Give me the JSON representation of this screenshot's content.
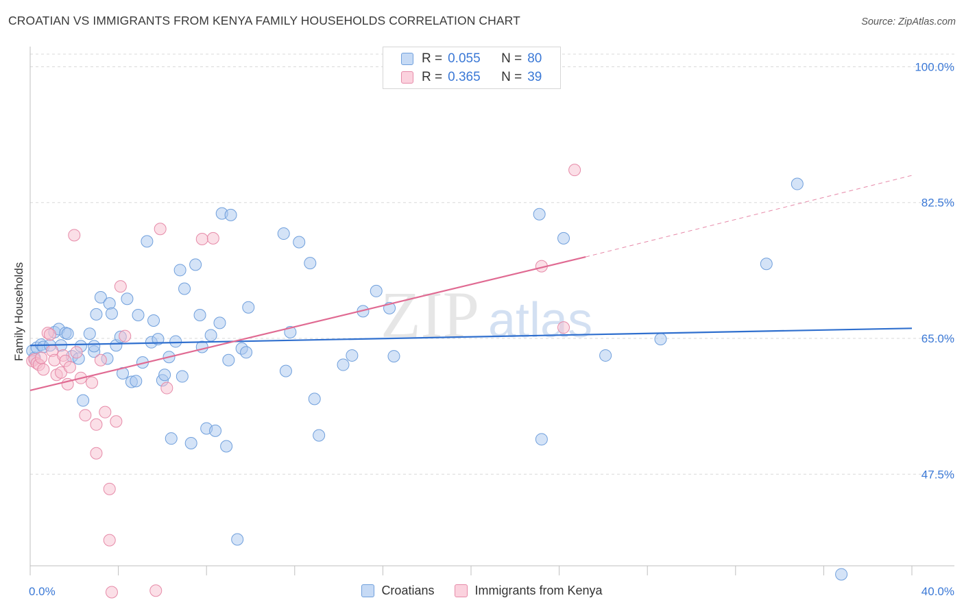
{
  "title": "CROATIAN VS IMMIGRANTS FROM KENYA FAMILY HOUSEHOLDS CORRELATION CHART",
  "source": "Source: ZipAtlas.com",
  "watermark": {
    "zip": "ZIP",
    "atlas": "atlas"
  },
  "colors": {
    "blue_fill": "#aac8f0",
    "blue_stroke": "#6f9fdc",
    "blue_line": "#2f6fce",
    "pink_fill": "#f8bfd0",
    "pink_stroke": "#e68aa8",
    "pink_line": "#e06a92",
    "axis_text": "#3a78d6",
    "grid": "#d9d9d9"
  },
  "legend_top": {
    "rows": [
      {
        "r_label": "R =",
        "r_value": "0.055",
        "n_label": "N =",
        "n_value": "80"
      },
      {
        "r_label": "R =",
        "r_value": "0.365",
        "n_label": "N =",
        "n_value": "39"
      }
    ]
  },
  "legend_bottom": {
    "series1": "Croatians",
    "series2": "Immigrants from Kenya"
  },
  "chart_data": {
    "type": "scatter",
    "title": "CROATIAN VS IMMIGRANTS FROM KENYA FAMILY HOUSEHOLDS CORRELATION CHART",
    "xlabel": "",
    "ylabel": "Family Households",
    "xlim": [
      0,
      40
    ],
    "ylim": [
      35.7,
      102.6
    ],
    "x_tick_labels": [
      "0.0%",
      "40.0%"
    ],
    "y_ticks": [
      47.5,
      65.0,
      82.5,
      100.0
    ],
    "y_tick_labels": [
      "47.5%",
      "65.0%",
      "82.5%",
      "100.0%"
    ],
    "series": [
      {
        "name": "Croatians",
        "r": 0.055,
        "n": 80,
        "trend": {
          "x": [
            0,
            40
          ],
          "y": [
            64.1,
            66.3
          ]
        },
        "points": [
          [
            0.1,
            63.4
          ],
          [
            0.2,
            62.5
          ],
          [
            0.3,
            63.8
          ],
          [
            0.5,
            64.2
          ],
          [
            0.6,
            63.9
          ],
          [
            0.9,
            64.1
          ],
          [
            1.1,
            65.8
          ],
          [
            1.3,
            66.2
          ],
          [
            1.4,
            64.1
          ],
          [
            1.6,
            65.7
          ],
          [
            1.7,
            65.6
          ],
          [
            1.9,
            62.7
          ],
          [
            2.2,
            62.4
          ],
          [
            2.3,
            64.0
          ],
          [
            2.4,
            57.0
          ],
          [
            2.7,
            65.6
          ],
          [
            2.9,
            63.3
          ],
          [
            2.9,
            64.0
          ],
          [
            3.0,
            68.1
          ],
          [
            3.2,
            70.3
          ],
          [
            3.5,
            62.4
          ],
          [
            3.6,
            69.5
          ],
          [
            3.7,
            68.2
          ],
          [
            3.9,
            64.1
          ],
          [
            4.1,
            65.2
          ],
          [
            4.2,
            60.5
          ],
          [
            4.4,
            70.1
          ],
          [
            4.6,
            59.4
          ],
          [
            4.8,
            59.5
          ],
          [
            4.9,
            68.0
          ],
          [
            5.1,
            61.9
          ],
          [
            5.3,
            77.5
          ],
          [
            5.5,
            64.5
          ],
          [
            5.6,
            67.3
          ],
          [
            5.8,
            64.9
          ],
          [
            6.0,
            59.6
          ],
          [
            6.1,
            60.3
          ],
          [
            6.3,
            62.6
          ],
          [
            6.4,
            52.1
          ],
          [
            6.6,
            64.6
          ],
          [
            6.8,
            73.8
          ],
          [
            6.9,
            60.1
          ],
          [
            7.0,
            71.4
          ],
          [
            7.3,
            51.5
          ],
          [
            7.5,
            74.5
          ],
          [
            7.7,
            68.0
          ],
          [
            7.8,
            63.9
          ],
          [
            8.0,
            53.4
          ],
          [
            8.2,
            65.4
          ],
          [
            8.4,
            53.1
          ],
          [
            8.6,
            67.0
          ],
          [
            8.7,
            81.1
          ],
          [
            8.9,
            51.1
          ],
          [
            9.0,
            62.2
          ],
          [
            9.1,
            80.9
          ],
          [
            9.4,
            39.1
          ],
          [
            9.6,
            63.7
          ],
          [
            9.8,
            63.2
          ],
          [
            9.9,
            69.0
          ],
          [
            11.5,
            78.5
          ],
          [
            11.6,
            60.8
          ],
          [
            11.8,
            65.8
          ],
          [
            12.2,
            77.4
          ],
          [
            12.7,
            74.7
          ],
          [
            12.9,
            57.2
          ],
          [
            13.1,
            52.5
          ],
          [
            14.2,
            61.6
          ],
          [
            14.6,
            62.8
          ],
          [
            15.1,
            68.5
          ],
          [
            15.7,
            71.1
          ],
          [
            16.3,
            68.9
          ],
          [
            16.5,
            62.7
          ],
          [
            23.2,
            52.0
          ],
          [
            23.1,
            81.0
          ],
          [
            24.2,
            77.9
          ],
          [
            26.1,
            62.8
          ],
          [
            28.6,
            64.9
          ],
          [
            33.4,
            74.6
          ],
          [
            34.8,
            84.9
          ],
          [
            36.8,
            34.6
          ]
        ]
      },
      {
        "name": "Immigrants from Kenya",
        "r": 0.365,
        "n": 39,
        "trend": {
          "x": [
            0,
            25.2
          ],
          "y": [
            58.3,
            75.5
          ]
        },
        "trend_dashed": {
          "x": [
            25.2,
            40
          ],
          "y": [
            75.5,
            86.0
          ]
        },
        "points": [
          [
            0.1,
            62.1
          ],
          [
            0.2,
            62.3
          ],
          [
            0.3,
            61.8
          ],
          [
            0.4,
            61.6
          ],
          [
            0.5,
            62.5
          ],
          [
            0.6,
            61.0
          ],
          [
            0.8,
            65.7
          ],
          [
            0.9,
            65.5
          ],
          [
            1.0,
            63.4
          ],
          [
            1.1,
            62.2
          ],
          [
            1.2,
            60.3
          ],
          [
            1.4,
            60.6
          ],
          [
            1.5,
            62.8
          ],
          [
            1.6,
            62.1
          ],
          [
            1.7,
            59.1
          ],
          [
            1.8,
            61.3
          ],
          [
            2.0,
            78.3
          ],
          [
            2.1,
            63.2
          ],
          [
            2.3,
            59.9
          ],
          [
            2.5,
            55.1
          ],
          [
            2.8,
            59.3
          ],
          [
            3.0,
            53.9
          ],
          [
            3.0,
            50.2
          ],
          [
            3.2,
            62.2
          ],
          [
            3.4,
            55.5
          ],
          [
            3.6,
            45.6
          ],
          [
            3.6,
            39.0
          ],
          [
            3.7,
            32.3
          ],
          [
            3.9,
            54.3
          ],
          [
            4.1,
            71.7
          ],
          [
            4.3,
            65.3
          ],
          [
            5.7,
            32.5
          ],
          [
            5.9,
            79.1
          ],
          [
            6.2,
            58.6
          ],
          [
            7.8,
            77.8
          ],
          [
            8.3,
            77.9
          ],
          [
            23.2,
            74.3
          ],
          [
            24.2,
            66.4
          ],
          [
            24.7,
            86.7
          ]
        ]
      }
    ]
  }
}
